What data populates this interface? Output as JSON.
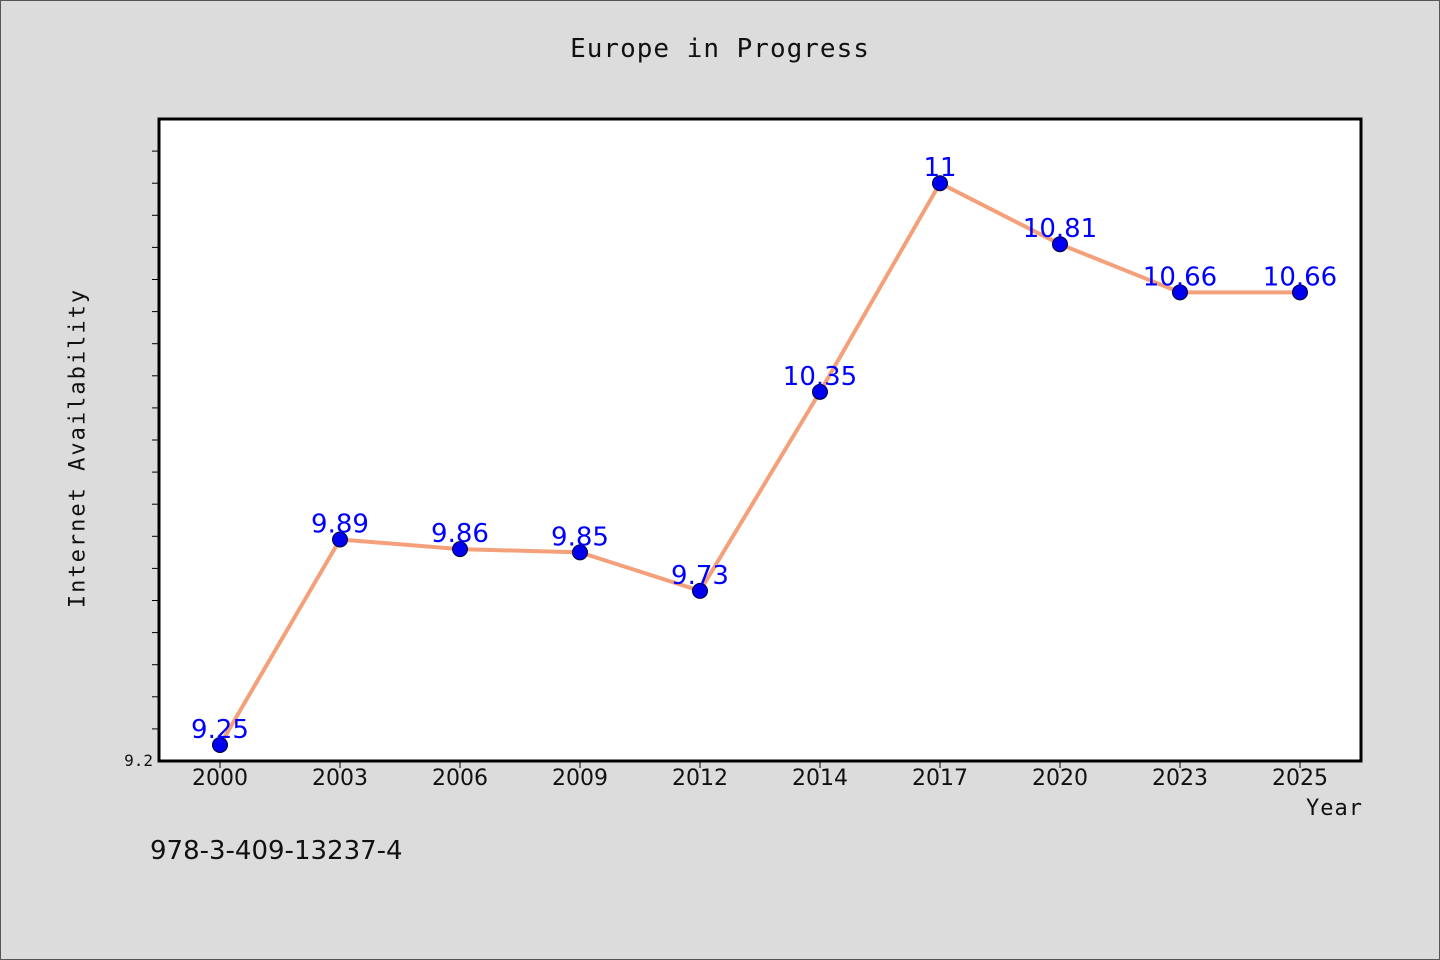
{
  "title": "Europe in Progress",
  "footnote": "978-3-409-13237-4",
  "chart_data": {
    "type": "line",
    "title": "Europe in Progress",
    "xlabel": "Year",
    "ylabel": "Internet Availability",
    "categories": [
      "2000",
      "2003",
      "2006",
      "2009",
      "2012",
      "2014",
      "2017",
      "2020",
      "2023",
      "2025"
    ],
    "series": [
      {
        "values": [
          9.25,
          9.89,
          9.86,
          9.85,
          9.73,
          10.35,
          11,
          10.81,
          10.66,
          10.66
        ],
        "data_labels": [
          "9.25",
          "9.89",
          "9.86",
          "9.85",
          "9.73",
          "10.35",
          "11",
          "10.81",
          "10.66",
          "10.66"
        ],
        "line_color": "#f4a07a",
        "marker_color": "#0000ee",
        "label_color": "#0000ff"
      }
    ],
    "ylim": [
      9.2,
      11.2
    ],
    "y_tick_labels": [
      "9.2"
    ],
    "grid": false,
    "legend": "none",
    "background": "#ffffff",
    "page_background": "#dcdcdc"
  }
}
